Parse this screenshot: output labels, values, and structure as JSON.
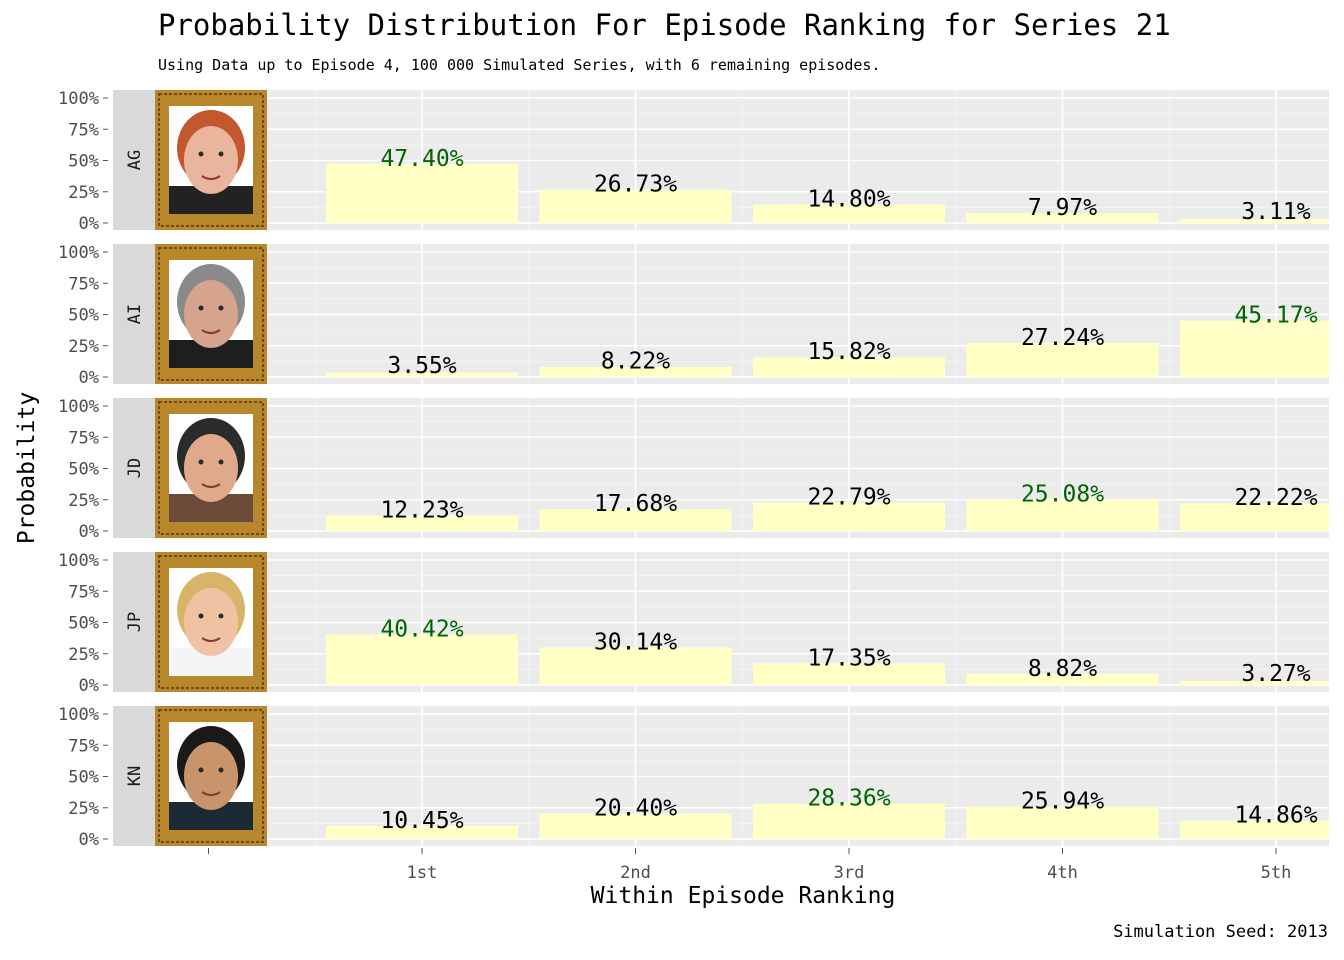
{
  "title": "Probability Distribution For Episode Ranking for Series 21",
  "subtitle": "Using Data up to Episode 4, 100 000 Simulated Series, with 6 remaining episodes.",
  "caption": "Simulation Seed: 2013",
  "chart_data": {
    "type": "bar",
    "xlabel": "Within Episode Ranking",
    "ylabel": "Probability",
    "categories": [
      "1st",
      "2nd",
      "3rd",
      "4th",
      "5th"
    ],
    "y_ticks": [
      "0%",
      "25%",
      "50%",
      "75%",
      "100%"
    ],
    "ylim": [
      0,
      100
    ],
    "grid": true,
    "facet_label_position": "left",
    "colors": {
      "bar": "#ffffc6",
      "panel": "#ebebeb",
      "strip": "#d9d9d9",
      "max_label": "#006400",
      "label": "#000000",
      "frame": "#b8862b"
    },
    "series": [
      {
        "name": "AG",
        "values": [
          47.4,
          26.73,
          14.8,
          7.97,
          3.11
        ],
        "labels": [
          "47.40%",
          "26.73%",
          "14.80%",
          "7.97%",
          "3.11%"
        ],
        "highlight_index": 0,
        "portrait": {
          "skin": "#e9b59c",
          "hair": "#c2582e",
          "shirt": "#222222"
        }
      },
      {
        "name": "AI",
        "values": [
          3.55,
          8.22,
          15.82,
          27.24,
          45.17
        ],
        "labels": [
          "3.55%",
          "8.22%",
          "15.82%",
          "27.24%",
          "45.17%"
        ],
        "highlight_index": 4,
        "portrait": {
          "skin": "#d6a38c",
          "hair": "#8a8a8a",
          "shirt": "#1e1e1e"
        }
      },
      {
        "name": "JD",
        "values": [
          12.23,
          17.68,
          22.79,
          25.08,
          22.22
        ],
        "labels": [
          "12.23%",
          "17.68%",
          "22.79%",
          "25.08%",
          "22.22%"
        ],
        "highlight_index": 3,
        "portrait": {
          "skin": "#e0a98a",
          "hair": "#2b2b2b",
          "shirt": "#6b4a3a"
        }
      },
      {
        "name": "JP",
        "values": [
          40.42,
          30.14,
          17.35,
          8.82,
          3.27
        ],
        "labels": [
          "40.42%",
          "30.14%",
          "17.35%",
          "8.82%",
          "3.27%"
        ],
        "highlight_index": 0,
        "portrait": {
          "skin": "#f0c2a4",
          "hair": "#d8b46a",
          "shirt": "#f5f5f5"
        }
      },
      {
        "name": "KN",
        "values": [
          10.45,
          20.4,
          28.36,
          25.94,
          14.86
        ],
        "labels": [
          "10.45%",
          "20.40%",
          "28.36%",
          "25.94%",
          "14.86%"
        ],
        "highlight_index": 2,
        "portrait": {
          "skin": "#c8946c",
          "hair": "#1a1a1a",
          "shirt": "#1c2a36"
        }
      }
    ]
  }
}
